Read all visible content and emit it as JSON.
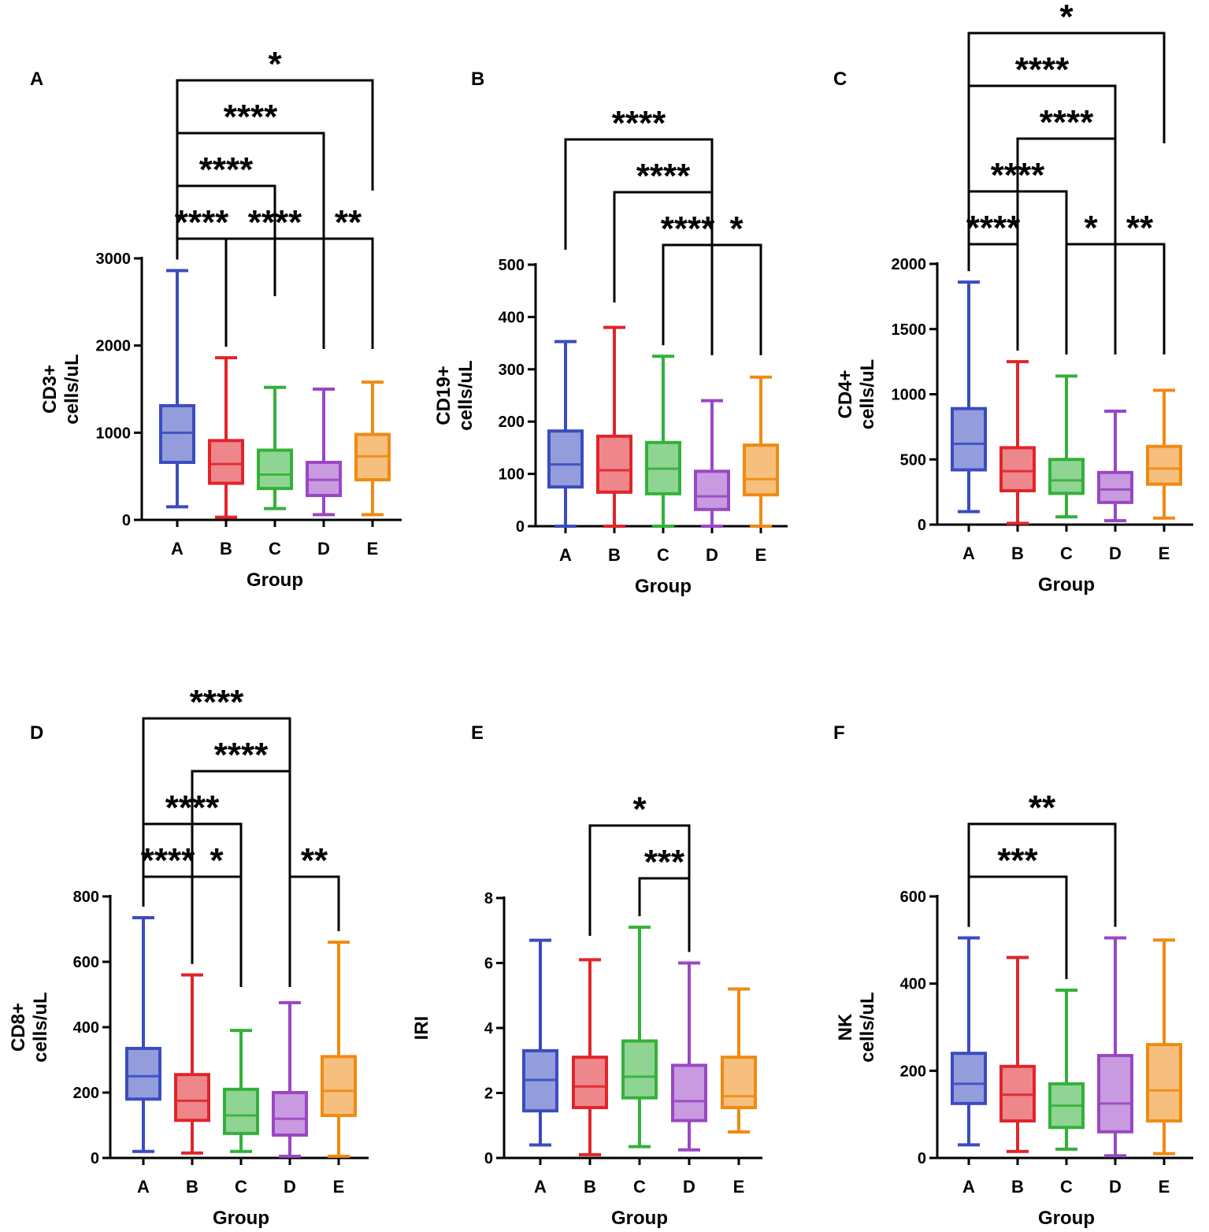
{
  "figure": {
    "colors": {
      "A": "#3b4cc0",
      "B": "#e0252b",
      "C": "#33b13a",
      "D": "#9a47c4",
      "E": "#f08a12"
    }
  },
  "chart_data": [
    {
      "panel": "A",
      "type": "boxplot",
      "ylabel": [
        "CD3+",
        "cells/uL"
      ],
      "xlabel": "Group",
      "categories": [
        "A",
        "B",
        "C",
        "D",
        "E"
      ],
      "ylim": [
        0,
        3000
      ],
      "yticks": [
        0,
        1000,
        2000,
        3000
      ],
      "boxes": [
        {
          "min": 150,
          "q1": 660,
          "median": 1000,
          "q3": 1310,
          "max": 2860
        },
        {
          "min": 30,
          "q1": 420,
          "median": 640,
          "q3": 910,
          "max": 1860
        },
        {
          "min": 130,
          "q1": 360,
          "median": 520,
          "q3": 800,
          "max": 1520
        },
        {
          "min": 60,
          "q1": 280,
          "median": 460,
          "q3": 660,
          "max": 1500
        },
        {
          "min": 60,
          "q1": 460,
          "median": 730,
          "q3": 980,
          "max": 1580
        }
      ],
      "brackets": [
        {
          "from": "A",
          "to": "B",
          "label": "****"
        },
        {
          "from": "D",
          "to": "E",
          "label": "**"
        },
        {
          "from": "A",
          "to": "C",
          "label": "****"
        },
        {
          "from": "B",
          "to": "D",
          "label": "****"
        },
        {
          "from": "A",
          "to": "D",
          "label": "****"
        },
        {
          "from": "A",
          "to": "E",
          "label": "*"
        }
      ]
    },
    {
      "panel": "B",
      "type": "boxplot",
      "ylabel": [
        "CD19+",
        "cells/uL"
      ],
      "xlabel": "Group",
      "categories": [
        "A",
        "B",
        "C",
        "D",
        "E"
      ],
      "ylim": [
        0,
        500
      ],
      "yticks": [
        0,
        100,
        200,
        300,
        400,
        500
      ],
      "boxes": [
        {
          "min": 0,
          "q1": 75,
          "median": 118,
          "q3": 182,
          "max": 353
        },
        {
          "min": 0,
          "q1": 65,
          "median": 107,
          "q3": 172,
          "max": 380
        },
        {
          "min": 0,
          "q1": 62,
          "median": 110,
          "q3": 160,
          "max": 325
        },
        {
          "min": 0,
          "q1": 32,
          "median": 57,
          "q3": 105,
          "max": 240
        },
        {
          "min": 0,
          "q1": 60,
          "median": 90,
          "q3": 155,
          "max": 285
        }
      ],
      "brackets": [
        {
          "from": "C",
          "to": "D",
          "label": "****"
        },
        {
          "from": "B",
          "to": "D",
          "label": "****"
        },
        {
          "from": "D",
          "to": "E",
          "label": "*"
        },
        {
          "from": "A",
          "to": "D",
          "label": "****"
        }
      ]
    },
    {
      "panel": "C",
      "type": "boxplot",
      "ylabel": [
        "CD4+",
        "cells/uL"
      ],
      "xlabel": "Group",
      "categories": [
        "A",
        "B",
        "C",
        "D",
        "E"
      ],
      "ylim": [
        0,
        2000
      ],
      "yticks": [
        0,
        500,
        1000,
        1500,
        2000
      ],
      "boxes": [
        {
          "min": 100,
          "q1": 420,
          "median": 620,
          "q3": 890,
          "max": 1860
        },
        {
          "min": 10,
          "q1": 260,
          "median": 410,
          "q3": 590,
          "max": 1250
        },
        {
          "min": 60,
          "q1": 240,
          "median": 340,
          "q3": 500,
          "max": 1140
        },
        {
          "min": 30,
          "q1": 170,
          "median": 270,
          "q3": 400,
          "max": 870
        },
        {
          "min": 50,
          "q1": 310,
          "median": 430,
          "q3": 600,
          "max": 1030
        }
      ],
      "brackets": [
        {
          "from": "A",
          "to": "B",
          "label": "****"
        },
        {
          "from": "C",
          "to": "D",
          "label": "*"
        },
        {
          "from": "D",
          "to": "E",
          "label": "**"
        },
        {
          "from": "A",
          "to": "C",
          "label": "****"
        },
        {
          "from": "B",
          "to": "D",
          "label": "****"
        },
        {
          "from": "A",
          "to": "D",
          "label": "****"
        },
        {
          "from": "A",
          "to": "E",
          "label": "*"
        }
      ]
    },
    {
      "panel": "D",
      "type": "boxplot",
      "ylabel": [
        "CD8+",
        "cells/uL"
      ],
      "xlabel": "Group",
      "categories": [
        "A",
        "B",
        "C",
        "D",
        "E"
      ],
      "ylim": [
        0,
        800
      ],
      "yticks": [
        0,
        200,
        400,
        600,
        800
      ],
      "boxes": [
        {
          "min": 20,
          "q1": 180,
          "median": 250,
          "q3": 335,
          "max": 735
        },
        {
          "min": 15,
          "q1": 115,
          "median": 175,
          "q3": 255,
          "max": 560
        },
        {
          "min": 20,
          "q1": 75,
          "median": 130,
          "q3": 210,
          "max": 390
        },
        {
          "min": 5,
          "q1": 70,
          "median": 120,
          "q3": 200,
          "max": 475
        },
        {
          "min": 5,
          "q1": 130,
          "median": 205,
          "q3": 310,
          "max": 660
        }
      ],
      "brackets": [
        {
          "from": "A",
          "to": "B",
          "label": "****"
        },
        {
          "from": "D",
          "to": "E",
          "label": "**"
        },
        {
          "from": "B",
          "to": "C",
          "label": "*"
        },
        {
          "from": "A",
          "to": "C",
          "label": "****"
        },
        {
          "from": "B",
          "to": "D",
          "label": "****"
        },
        {
          "from": "A",
          "to": "D",
          "label": "****"
        }
      ]
    },
    {
      "panel": "E",
      "type": "boxplot",
      "ylabel": [
        "IRI"
      ],
      "xlabel": "Group",
      "categories": [
        "A",
        "B",
        "C",
        "D",
        "E"
      ],
      "ylim": [
        0,
        8
      ],
      "yticks": [
        0,
        2,
        4,
        6,
        8
      ],
      "boxes": [
        {
          "min": 0.4,
          "q1": 1.45,
          "median": 2.4,
          "q3": 3.3,
          "max": 6.7
        },
        {
          "min": 0.1,
          "q1": 1.55,
          "median": 2.2,
          "q3": 3.1,
          "max": 6.1
        },
        {
          "min": 0.35,
          "q1": 1.85,
          "median": 2.5,
          "q3": 3.6,
          "max": 7.1
        },
        {
          "min": 0.25,
          "q1": 1.15,
          "median": 1.75,
          "q3": 2.85,
          "max": 6.0
        },
        {
          "min": 0.8,
          "q1": 1.55,
          "median": 1.9,
          "q3": 3.1,
          "max": 5.2
        }
      ],
      "brackets": [
        {
          "from": "C",
          "to": "D",
          "label": "***"
        },
        {
          "from": "B",
          "to": "D",
          "label": "*"
        }
      ]
    },
    {
      "panel": "F",
      "type": "boxplot",
      "ylabel": [
        "NK",
        "cells/uL"
      ],
      "xlabel": "Group",
      "categories": [
        "A",
        "B",
        "C",
        "D",
        "E"
      ],
      "ylim": [
        0,
        600
      ],
      "yticks": [
        0,
        200,
        400,
        600
      ],
      "boxes": [
        {
          "min": 30,
          "q1": 125,
          "median": 170,
          "q3": 240,
          "max": 505
        },
        {
          "min": 15,
          "q1": 85,
          "median": 145,
          "q3": 210,
          "max": 460
        },
        {
          "min": 20,
          "q1": 70,
          "median": 120,
          "q3": 170,
          "max": 385
        },
        {
          "min": 5,
          "q1": 60,
          "median": 125,
          "q3": 235,
          "max": 505
        },
        {
          "min": 10,
          "q1": 85,
          "median": 155,
          "q3": 260,
          "max": 500
        }
      ],
      "brackets": [
        {
          "from": "A",
          "to": "C",
          "label": "***"
        },
        {
          "from": "A",
          "to": "D",
          "label": "**"
        }
      ]
    }
  ]
}
